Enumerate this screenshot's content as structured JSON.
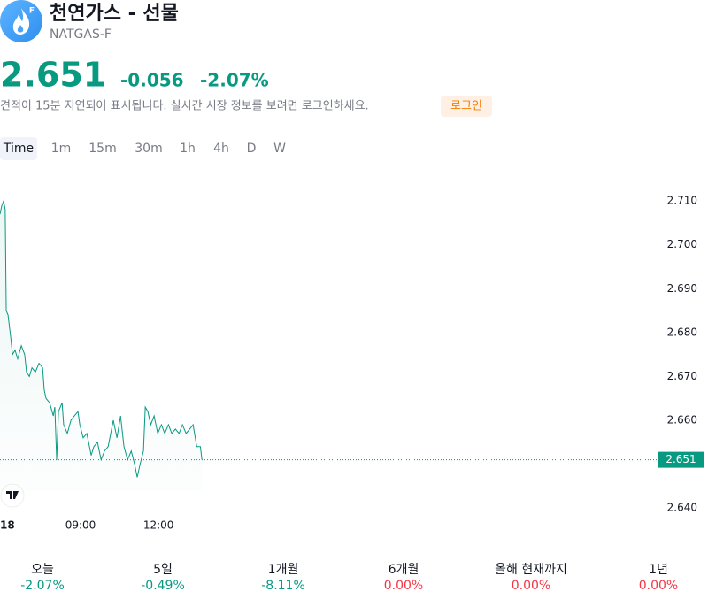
{
  "header": {
    "title": "천연가스 - 선물",
    "symbol": "NATGAS-F",
    "price": "2.651",
    "change": "-0.056",
    "change_percent": "-2.07%",
    "delay_notice": "견적이 15분 지연되어 표시됩니다. 실시간 시장 정보를 보려면 로그인하세요.",
    "login": "로그인"
  },
  "tabs": [
    "Time",
    "1m",
    "15m",
    "30m",
    "1h",
    "4h",
    "D",
    "W"
  ],
  "chart_data": {
    "type": "line",
    "color": "#089981",
    "x": [
      5.9,
      5.97,
      6.04,
      6.1,
      6.14,
      6.21,
      6.31,
      6.38,
      6.48,
      6.58,
      6.72,
      6.85,
      6.92,
      7.03,
      7.13,
      7.26,
      7.4,
      7.54,
      7.6,
      7.67,
      7.81,
      7.95,
      8.01,
      8.08,
      8.15,
      8.29,
      8.35,
      8.49,
      8.63,
      8.76,
      8.9,
      8.97,
      9.1,
      9.24,
      9.31,
      9.41,
      9.51,
      9.65,
      9.79,
      9.92,
      10.06,
      10.16,
      10.26,
      10.4,
      10.54,
      10.67,
      10.81,
      10.95,
      11.08,
      11.18,
      11.29,
      11.42,
      11.49,
      11.59,
      11.7,
      11.83,
      11.97,
      12.11,
      12.24,
      12.38,
      12.51,
      12.65,
      12.79,
      12.92,
      13.06,
      13.2,
      13.33,
      13.47,
      13.61,
      13.67
    ],
    "values": [
      2.707,
      2.709,
      2.71,
      2.708,
      2.685,
      2.684,
      2.679,
      2.675,
      2.676,
      2.674,
      2.677,
      2.675,
      2.671,
      2.67,
      2.672,
      2.671,
      2.673,
      2.672,
      2.667,
      2.665,
      2.664,
      2.661,
      2.663,
      2.651,
      2.662,
      2.664,
      2.659,
      2.657,
      2.66,
      2.661,
      2.662,
      2.659,
      2.656,
      2.657,
      2.655,
      2.652,
      2.654,
      2.655,
      2.651,
      2.653,
      2.654,
      2.657,
      2.66,
      2.656,
      2.661,
      2.654,
      2.651,
      2.653,
      2.65,
      2.647,
      2.65,
      2.653,
      2.663,
      2.662,
      2.659,
      2.661,
      2.657,
      2.659,
      2.657,
      2.659,
      2.657,
      2.658,
      2.657,
      2.659,
      2.657,
      2.658,
      2.659,
      2.654,
      2.654,
      2.651
    ],
    "xlim": [
      5.9,
      31.1
    ],
    "ylim": [
      2.6368,
      2.7175
    ],
    "xticks": [
      {
        "value": 6.17,
        "label": "18"
      },
      {
        "value": 9,
        "label": "09:00"
      },
      {
        "value": 12,
        "label": "12:00"
      }
    ],
    "yticks": [
      {
        "value": 2.64,
        "label": "2.640"
      },
      {
        "value": 2.66,
        "label": "2.660"
      },
      {
        "value": 2.67,
        "label": "2.670"
      },
      {
        "value": 2.68,
        "label": "2.680"
      },
      {
        "value": 2.69,
        "label": "2.690"
      },
      {
        "value": 2.7,
        "label": "2.700"
      },
      {
        "value": 2.71,
        "label": "2.710"
      }
    ],
    "last_value": 2.651
  },
  "performance": [
    {
      "label": "오늘",
      "value": "-2.07%",
      "color": "#089981"
    },
    {
      "label": "5일",
      "value": "-0.49%",
      "color": "#089981"
    },
    {
      "label": "1개월",
      "value": "-8.11%",
      "color": "#089981"
    },
    {
      "label": "6개월",
      "value": "0.00%",
      "color": "#f23645"
    },
    {
      "label": "올해 현재까지",
      "value": "0.00%",
      "color": "#f23645"
    },
    {
      "label": "1년",
      "value": "0.00%",
      "color": "#f23645"
    }
  ]
}
